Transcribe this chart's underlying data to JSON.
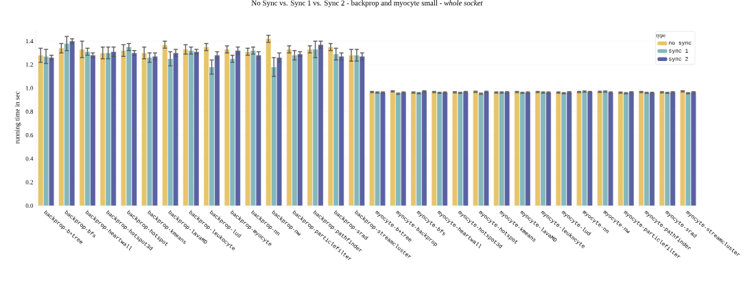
{
  "chart_data": {
    "type": "bar",
    "title": "No Sync vs. Sync 1 vs. Sync 2 - backprop and myocyte small - *whole socket*",
    "ylabel": "running time in sec",
    "legend_title": "type",
    "categories": [
      "backprop-b+tree",
      "backprop-bfs",
      "backprop-heartwall",
      "backprop-hotspot3d",
      "backprop-hotspot",
      "backprop-kmeans",
      "backprop-lavaMD",
      "backprop-leukocyte",
      "backprop-lud",
      "backprop-myocyte",
      "backprop-nn",
      "backprop-nw",
      "backprop-particlefilter",
      "backprop-pathfinder",
      "backprop-srad",
      "backprop-streamcluster",
      "myocyte-b+tree",
      "myocyte-backprop",
      "myocyte-bfs",
      "myocyte-heartwall",
      "myocyte-hotspot3d",
      "myocyte-hotspot",
      "myocyte-kmeans",
      "myocyte-lavaMD",
      "myocyte-leukocyte",
      "myocyte-lud",
      "myocyte-nn",
      "myocyte-nw",
      "myocyte-particlefilter",
      "myocyte-pathfinder",
      "myocyte-srad",
      "myocyte-streamcluster"
    ],
    "series": [
      {
        "name": "no sync",
        "color": "#e8c46a",
        "values": [
          1.28,
          1.34,
          1.33,
          1.3,
          1.32,
          1.3,
          1.37,
          1.33,
          1.35,
          1.33,
          1.31,
          1.42,
          1.33,
          1.33,
          1.35,
          1.28,
          0.967,
          0.973,
          0.963,
          0.967,
          0.965,
          0.969,
          0.963,
          0.967,
          0.967,
          0.963,
          0.967,
          0.969,
          0.962,
          0.967,
          0.965,
          0.973
        ],
        "errors": [
          0.06,
          0.04,
          0.07,
          0.05,
          0.05,
          0.05,
          0.03,
          0.04,
          0.03,
          0.03,
          0.03,
          0.03,
          0.03,
          0.03,
          0.03,
          0.05,
          0.005,
          0.005,
          0.005,
          0.005,
          0.005,
          0.005,
          0.005,
          0.005,
          0.005,
          0.005,
          0.005,
          0.005,
          0.005,
          0.005,
          0.005,
          0.005
        ]
      },
      {
        "name": "sync 1",
        "color": "#84b8bd",
        "values": [
          1.27,
          1.38,
          1.31,
          1.3,
          1.35,
          1.26,
          1.25,
          1.32,
          1.18,
          1.25,
          1.32,
          1.18,
          1.28,
          1.33,
          1.29,
          1.28,
          0.963,
          0.953,
          0.957,
          0.96,
          0.96,
          0.953,
          0.963,
          0.96,
          0.963,
          0.957,
          0.971,
          0.971,
          0.957,
          0.96,
          0.96,
          0.957
        ],
        "errors": [
          0.06,
          0.06,
          0.03,
          0.05,
          0.03,
          0.04,
          0.06,
          0.03,
          0.06,
          0.03,
          0.03,
          0.08,
          0.04,
          0.07,
          0.05,
          0.05,
          0.005,
          0.005,
          0.005,
          0.005,
          0.005,
          0.005,
          0.005,
          0.005,
          0.005,
          0.005,
          0.005,
          0.005,
          0.005,
          0.005,
          0.005,
          0.005
        ]
      },
      {
        "name": "sync 2",
        "color": "#5a62a3",
        "values": [
          1.26,
          1.4,
          1.28,
          1.31,
          1.3,
          1.27,
          1.3,
          1.31,
          1.28,
          1.32,
          1.28,
          1.26,
          1.29,
          1.37,
          1.27,
          1.27,
          0.963,
          0.963,
          0.973,
          0.963,
          0.967,
          0.969,
          0.965,
          0.963,
          0.963,
          0.965,
          0.967,
          0.963,
          0.965,
          0.96,
          0.965,
          0.965
        ],
        "errors": [
          0.02,
          0.02,
          0.02,
          0.04,
          0.02,
          0.03,
          0.03,
          0.02,
          0.03,
          0.03,
          0.03,
          0.04,
          0.02,
          0.03,
          0.03,
          0.03,
          0.005,
          0.005,
          0.005,
          0.005,
          0.005,
          0.005,
          0.005,
          0.005,
          0.005,
          0.005,
          0.005,
          0.005,
          0.005,
          0.005,
          0.005,
          0.005
        ]
      }
    ],
    "ylim": [
      0,
      1.5
    ],
    "yticks": [
      {
        "value": 0,
        "label": "0.0"
      },
      {
        "value": 0.2,
        "label": "0.2"
      },
      {
        "value": 0.4,
        "label": "0.4"
      },
      {
        "value": 0.6,
        "label": "0.6"
      },
      {
        "value": 0.8,
        "label": "0.8"
      },
      {
        "value": 1.0,
        "label": "1.0"
      },
      {
        "value": 1.2,
        "label": "1.2"
      },
      {
        "value": 1.4,
        "label": "1.4"
      }
    ],
    "grid": "y",
    "legend": "top right"
  }
}
